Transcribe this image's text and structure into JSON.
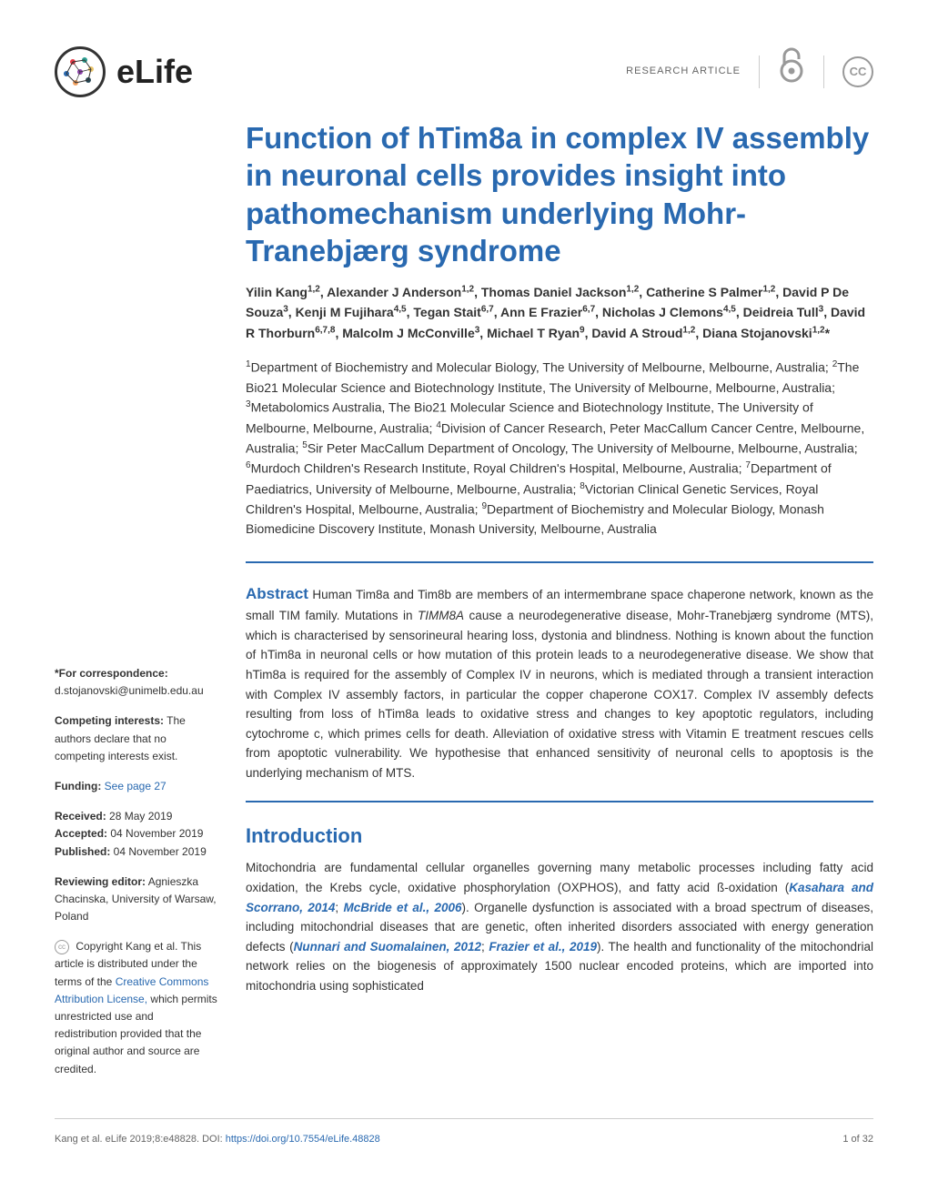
{
  "journal": {
    "name": "eLife",
    "logo_colors": [
      "#e63946",
      "#2a9d8f",
      "#e9c46a",
      "#264653",
      "#f4a261"
    ]
  },
  "header": {
    "article_type": "RESEARCH ARTICLE",
    "oa_symbol": "∂",
    "cc_symbol": "CC"
  },
  "article": {
    "title": "Function of hTim8a in complex IV assembly in neuronal cells provides insight into pathomechanism underlying Mohr-Tranebjærg syndrome",
    "authors_html": "Yilin Kang<sup>1,2</sup>, Alexander J Anderson<sup>1,2</sup>, Thomas Daniel Jackson<sup>1,2</sup>, Catherine S Palmer<sup>1,2</sup>, David P De Souza<sup>3</sup>, Kenji M Fujihara<sup>4,5</sup>, Tegan Stait<sup>6,7</sup>, Ann E Frazier<sup>6,7</sup>, Nicholas J Clemons<sup>4,5</sup>, Deidreia Tull<sup>3</sup>, David R Thorburn<sup>6,7,8</sup>, Malcolm J McConville<sup>3</sup>, Michael T Ryan<sup>9</sup>, David A Stroud<sup>1,2</sup>, Diana Stojanovski<sup>1,2</sup>*",
    "affiliations_html": "<sup>1</sup>Department of Biochemistry and Molecular Biology, The University of Melbourne, Melbourne, Australia; <sup>2</sup>The Bio21 Molecular Science and Biotechnology Institute, The University of Melbourne, Melbourne, Australia; <sup>3</sup>Metabolomics Australia, The Bio21 Molecular Science and Biotechnology Institute, The University of Melbourne, Melbourne, Australia; <sup>4</sup>Division of Cancer Research, Peter MacCallum Cancer Centre, Melbourne, Australia; <sup>5</sup>Sir Peter MacCallum Department of Oncology, The University of Melbourne, Melbourne, Australia; <sup>6</sup>Murdoch Children's Research Institute, Royal Children's Hospital, Melbourne, Australia; <sup>7</sup>Department of Paediatrics, University of Melbourne, Melbourne, Australia; <sup>8</sup>Victorian Clinical Genetic Services, Royal Children's Hospital, Melbourne, Australia; <sup>9</sup>Department of Biochemistry and Molecular Biology, Monash Biomedicine Discovery Institute, Monash University, Melbourne, Australia",
    "abstract_label": "Abstract",
    "abstract_html": "Human Tim8a and Tim8b are members of an intermembrane space chaperone network, known as the small TIM family. Mutations in <em>TIMM8A</em> cause a neurodegenerative disease, Mohr-Tranebjærg syndrome (MTS), which is characterised by sensorineural hearing loss, dystonia and blindness. Nothing is known about the function of hTim8a in neuronal cells or how mutation of this protein leads to a neurodegenerative disease. We show that hTim8a is required for the assembly of Complex IV in neurons, which is mediated through a transient interaction with Complex IV assembly factors, in particular the copper chaperone COX17. Complex IV assembly defects resulting from loss of hTim8a leads to oxidative stress and changes to key apoptotic regulators, including cytochrome c, which primes cells for death. Alleviation of oxidative stress with Vitamin E treatment rescues cells from apoptotic vulnerability. We hypothesise that enhanced sensitivity of neuronal cells to apoptosis is the underlying mechanism of MTS.",
    "intro_heading": "Introduction",
    "intro_html": "Mitochondria are fundamental cellular organelles governing many metabolic processes including fatty acid oxidation, the Krebs cycle, oxidative phosphorylation (OXPHOS), and fatty acid ß-oxidation (<span class='ref'>Kasahara and Scorrano, 2014</span>; <span class='ref'>McBride et al., 2006</span>). Organelle dysfunction is associated with a broad spectrum of diseases, including mitochondrial diseases that are genetic, often inherited disorders associated with energy generation defects (<span class='ref'>Nunnari and Suomalainen, 2012</span>; <span class='ref'>Frazier et al., 2019</span>). The health and functionality of the mitochondrial network relies on the biogenesis of approximately 1500 nuclear encoded proteins, which are imported into mitochondria using sophisticated"
  },
  "sidebar": {
    "correspondence_label": "*For correspondence:",
    "correspondence_email": "d.stojanovski@unimelb.edu.au",
    "competing_label": "Competing interests:",
    "competing_text": " The authors declare that no competing interests exist.",
    "funding_label": "Funding:",
    "funding_link": " See page 27",
    "received_label": "Received:",
    "received_date": " 28 May 2019",
    "accepted_label": "Accepted:",
    "accepted_date": " 04 November 2019",
    "published_label": "Published:",
    "published_date": " 04 November 2019",
    "editor_label": "Reviewing editor:",
    "editor_text": " Agnieszka Chacinska, University of Warsaw, Poland",
    "copyright_text": " Copyright Kang et al. This article is distributed under the terms of the ",
    "copyright_link": "Creative Commons Attribution License,",
    "copyright_text2": " which permits unrestricted use and redistribution provided that the original author and source are credited."
  },
  "footer": {
    "citation": "Kang et al. eLife 2019;8:e48828. DOI: ",
    "doi": "https://doi.org/10.7554/eLife.48828",
    "page": "1 of 32"
  },
  "colors": {
    "primary": "#2969b0",
    "text": "#333333",
    "muted": "#666666",
    "border": "#cccccc"
  }
}
